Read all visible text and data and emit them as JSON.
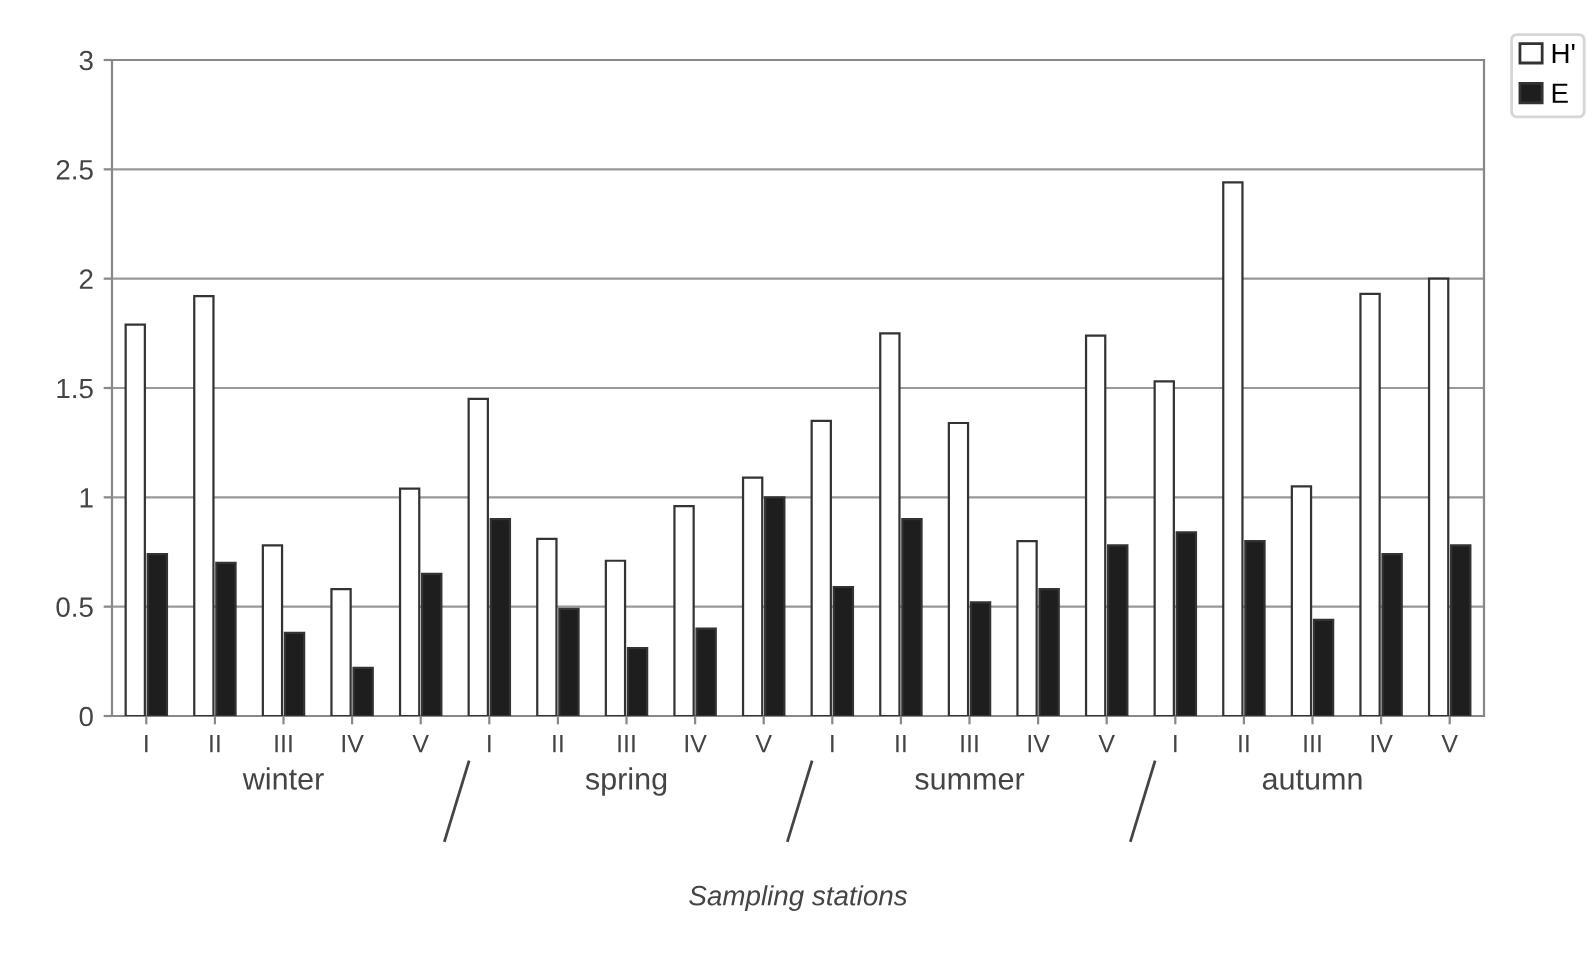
{
  "chart_data": {
    "type": "bar",
    "xlabel": "Sampling stations",
    "categories": [
      "I",
      "II",
      "III",
      "IV",
      "V",
      "I",
      "II",
      "III",
      "IV",
      "V",
      "I",
      "II",
      "III",
      "IV",
      "V",
      "I",
      "II",
      "III",
      "IV",
      "V"
    ],
    "series": [
      {
        "name": "H'",
        "color": "#ffffff",
        "values": [
          1.79,
          1.92,
          0.78,
          0.58,
          1.04,
          1.45,
          0.81,
          0.71,
          0.96,
          1.09,
          1.35,
          1.75,
          1.34,
          0.8,
          1.74,
          1.53,
          2.44,
          1.05,
          1.93,
          2.0
        ]
      },
      {
        "name": "E",
        "color": "#1e1e1e",
        "values": [
          0.74,
          0.7,
          0.38,
          0.22,
          0.65,
          0.9,
          0.49,
          0.31,
          0.4,
          1.0,
          0.59,
          0.9,
          0.52,
          0.58,
          0.78,
          0.84,
          0.8,
          0.44,
          0.74,
          0.78
        ]
      }
    ],
    "annotations": [
      "winter",
      "spring",
      "summer",
      "autumn"
    ],
    "ylim": [
      0,
      3
    ],
    "yticks": [
      0,
      0.5,
      1,
      1.5,
      2,
      2.5,
      3
    ],
    "grid": "y",
    "legend": "top right"
  }
}
